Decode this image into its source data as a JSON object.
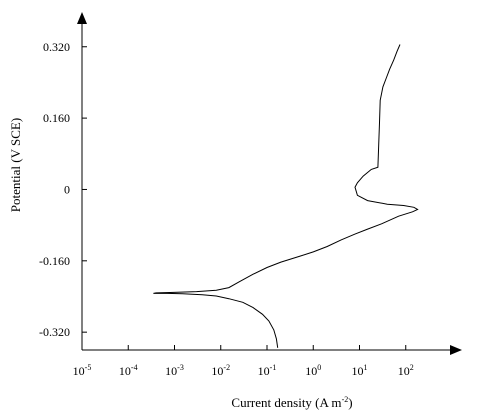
{
  "chart_data": {
    "type": "line",
    "title": "",
    "xlabel": "Current density (A m",
    "xlabel_sup": "-2",
    "xlabel_close": ")",
    "ylabel": "Potential (V SCE)",
    "xscale": "log",
    "xlim": [
      1e-05,
      1000
    ],
    "ylim": [
      -0.36,
      0.38
    ],
    "x_ticks": [
      {
        "base": "10",
        "exp": "-5",
        "value": 1e-05
      },
      {
        "base": "10",
        "exp": "-4",
        "value": 0.0001
      },
      {
        "base": "10",
        "exp": "-3",
        "value": 0.001
      },
      {
        "base": "10",
        "exp": "-2",
        "value": 0.01
      },
      {
        "base": "10",
        "exp": "-1",
        "value": 0.1
      },
      {
        "base": "10",
        "exp": "0",
        "value": 1
      },
      {
        "base": "10",
        "exp": "1",
        "value": 10
      },
      {
        "base": "10",
        "exp": "2",
        "value": 100
      }
    ],
    "y_ticks": [
      {
        "label": "0.320",
        "value": 0.32
      },
      {
        "label": "0.160",
        "value": 0.16
      },
      {
        "label": "0",
        "value": 0
      },
      {
        "label": "-0.160",
        "value": -0.16
      },
      {
        "label": "-0.320",
        "value": -0.32
      }
    ],
    "grid": false,
    "legend": "none",
    "series": [
      {
        "color": "#000000",
        "x": [
          0.17,
          0.16,
          0.14,
          0.11,
          0.08,
          0.05,
          0.03,
          0.015,
          0.008,
          0.004,
          0.0015,
          0.0007,
          0.00045,
          0.00035,
          0.0004,
          0.0008,
          0.003,
          0.008,
          0.015,
          0.025,
          0.05,
          0.1,
          0.2,
          0.5,
          1,
          2,
          4,
          8,
          15,
          30,
          70,
          140,
          180,
          150,
          90,
          40,
          15,
          9,
          8,
          9,
          12,
          18,
          25,
          26,
          27,
          28,
          32,
          38,
          45,
          55,
          65,
          75
        ],
        "y": [
          -0.355,
          -0.335,
          -0.315,
          -0.295,
          -0.28,
          -0.265,
          -0.253,
          -0.245,
          -0.239,
          -0.236,
          -0.234,
          -0.233,
          -0.233,
          -0.233,
          -0.232,
          -0.231,
          -0.229,
          -0.226,
          -0.22,
          -0.207,
          -0.19,
          -0.175,
          -0.163,
          -0.15,
          -0.14,
          -0.128,
          -0.113,
          -0.1,
          -0.089,
          -0.077,
          -0.06,
          -0.05,
          -0.045,
          -0.04,
          -0.036,
          -0.033,
          -0.025,
          -0.013,
          0.005,
          0.015,
          0.03,
          0.045,
          0.05,
          0.1,
          0.15,
          0.2,
          0.23,
          0.25,
          0.27,
          0.29,
          0.31,
          0.325
        ]
      }
    ]
  }
}
